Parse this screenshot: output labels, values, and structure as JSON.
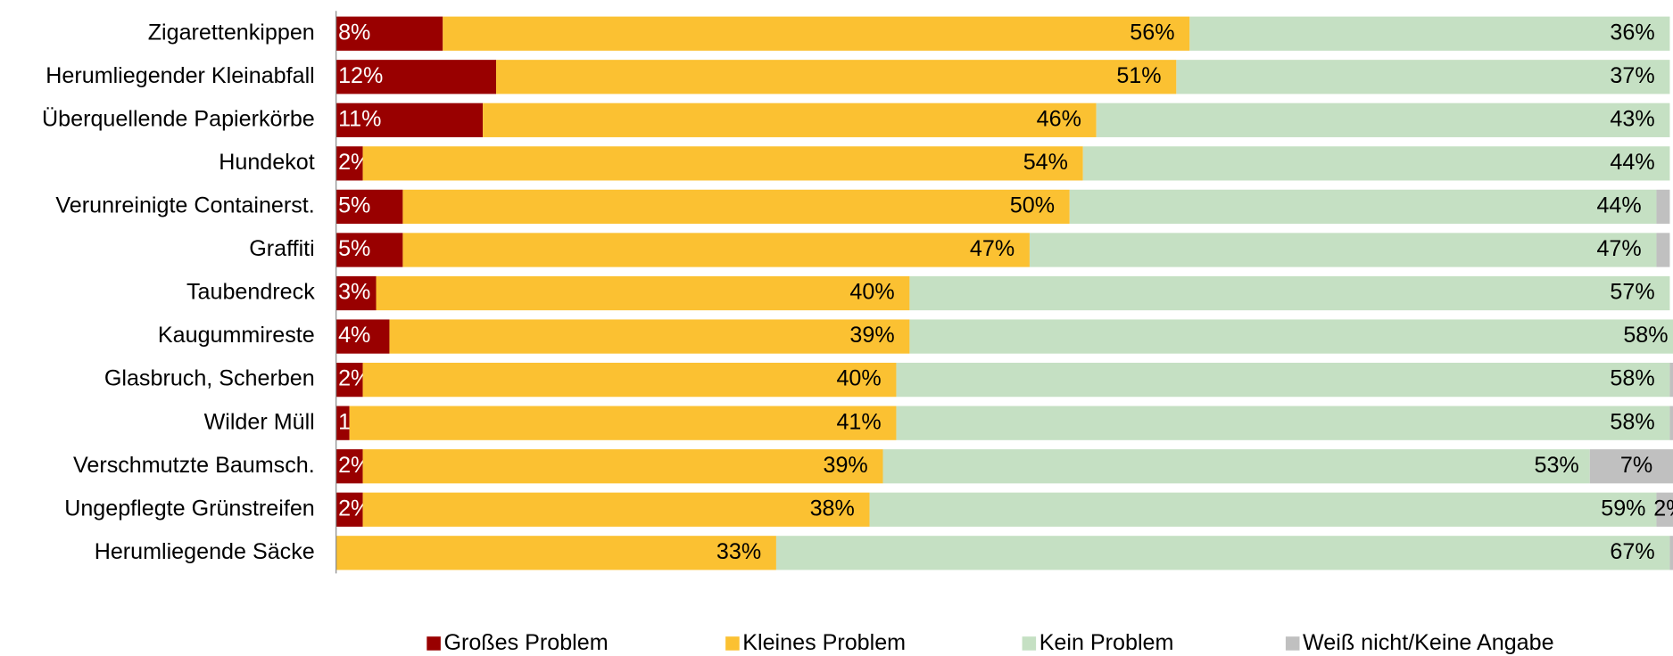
{
  "chart_data": {
    "type": "stacked-bar",
    "categories": [
      "Zigarettenkippen",
      "Herumliegender Kleinabfall",
      "Überquellende Papierkörbe",
      "Hundekot",
      "Verunreinigte Containerst.",
      "Graffiti",
      "Taubendreck",
      "Kaugummireste",
      "Glasbruch, Scherben",
      "Wilder Müll",
      "Verschmutzte Baumsch.",
      "Ungepflegte Grünstreifen",
      "Herumliegende Säcke"
    ],
    "series": [
      {
        "name": "Großes Problem",
        "color": "#990000",
        "values": [
          8,
          12,
          11,
          2,
          5,
          5,
          3,
          4,
          2,
          1,
          2,
          2,
          0
        ],
        "value_labels": [
          "8%",
          "12%",
          "11%",
          "2%",
          "5%",
          "5%",
          "3%",
          "4%",
          "2%",
          "1%",
          "2%",
          "2%",
          null
        ]
      },
      {
        "name": "Kleines Problem",
        "color": "#fbc132",
        "values": [
          56,
          51,
          46,
          54,
          50,
          47,
          40,
          39,
          40,
          41,
          39,
          38,
          33
        ],
        "value_labels": [
          "56%",
          "51%",
          "46%",
          "54%",
          "50%",
          "47%",
          "40%",
          "39%",
          "40%",
          "41%",
          "39%",
          "38%",
          "33%"
        ]
      },
      {
        "name": "Kein Problem",
        "color": "#c5e0c3",
        "values": [
          36,
          37,
          43,
          44,
          44,
          47,
          57,
          58,
          58,
          58,
          53,
          59,
          67
        ],
        "value_labels": [
          "36%",
          "37%",
          "43%",
          "44%",
          "44%",
          "47%",
          "57%",
          "58%",
          "58%",
          "58%",
          "53%",
          "59%",
          "67%"
        ]
      },
      {
        "name": "Weiß nicht/Keine Angabe",
        "color": "#c0c0c0",
        "values": [
          0,
          0,
          0,
          0,
          1,
          1,
          0,
          1,
          1,
          1,
          7,
          2,
          1
        ],
        "value_labels": [
          null,
          null,
          null,
          null,
          null,
          null,
          null,
          null,
          null,
          null,
          "7%",
          "2%",
          null
        ]
      }
    ],
    "xlim": [
      0,
      100
    ],
    "legend": "bottom"
  }
}
